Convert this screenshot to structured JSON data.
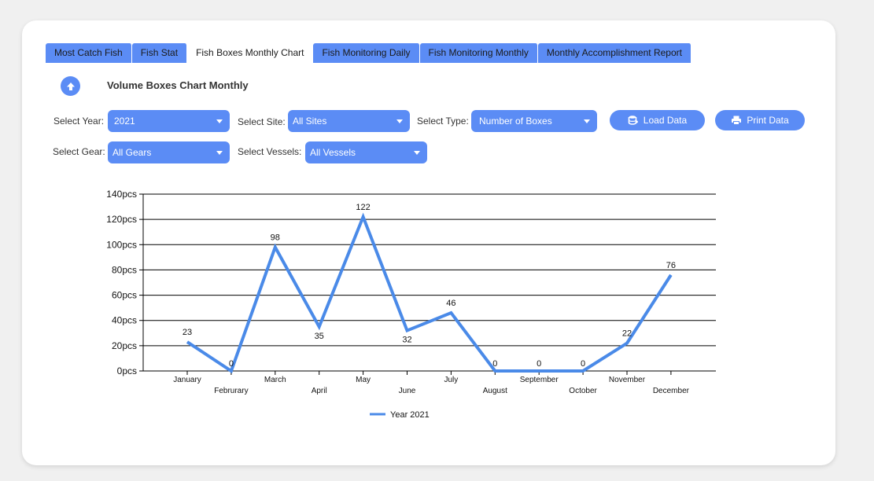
{
  "tabs": [
    {
      "label": "Most Catch Fish",
      "active": false
    },
    {
      "label": "Fish Stat",
      "active": false
    },
    {
      "label": "Fish Boxes Monthly Chart",
      "active": true
    },
    {
      "label": "Fish Monitoring Daily",
      "active": false
    },
    {
      "label": "Fish Monitoring Monthly",
      "active": false
    },
    {
      "label": "Monthly Accomplishment Report",
      "active": false
    }
  ],
  "panel": {
    "title": "Volume Boxes Chart Monthly",
    "up_icon": "arrow-up-icon"
  },
  "filters": {
    "year": {
      "label": "Select Year:",
      "value": "2021"
    },
    "site": {
      "label": "Select Site:",
      "value": "All Sites"
    },
    "type": {
      "label": "Select Type:",
      "value": "Number of Boxes"
    },
    "gear": {
      "label": "Select Gear:",
      "value": "All Gears"
    },
    "vessels": {
      "label": "Select Vessels:",
      "value": "All Vessels"
    }
  },
  "buttons": {
    "load": {
      "label": "Load Data",
      "icon": "database-icon"
    },
    "print": {
      "label": "Print Data",
      "icon": "printer-icon"
    }
  },
  "colors": {
    "accent": "#5b8cf5",
    "series": "#4a8ae8"
  },
  "chart_data": {
    "type": "line",
    "categories": [
      "January",
      "Februrary",
      "March",
      "April",
      "May",
      "June",
      "July",
      "August",
      "September",
      "October",
      "November",
      "December"
    ],
    "series": [
      {
        "name": "Year 2021",
        "values": [
          23,
          0,
          98,
          35,
          122,
          32,
          46,
          0,
          0,
          0,
          22,
          76
        ]
      }
    ],
    "ylim": [
      0,
      140
    ],
    "yticks": [
      0,
      20,
      40,
      60,
      80,
      100,
      120,
      140
    ],
    "ytick_suffix": "pcs",
    "ytick_labels": [
      "0pcs",
      "20pcs",
      "40pcs",
      "60pcs",
      "80pcs",
      "100pcs",
      "120pcs",
      "140pcs"
    ],
    "grid": true,
    "legend": "bottom-center"
  }
}
